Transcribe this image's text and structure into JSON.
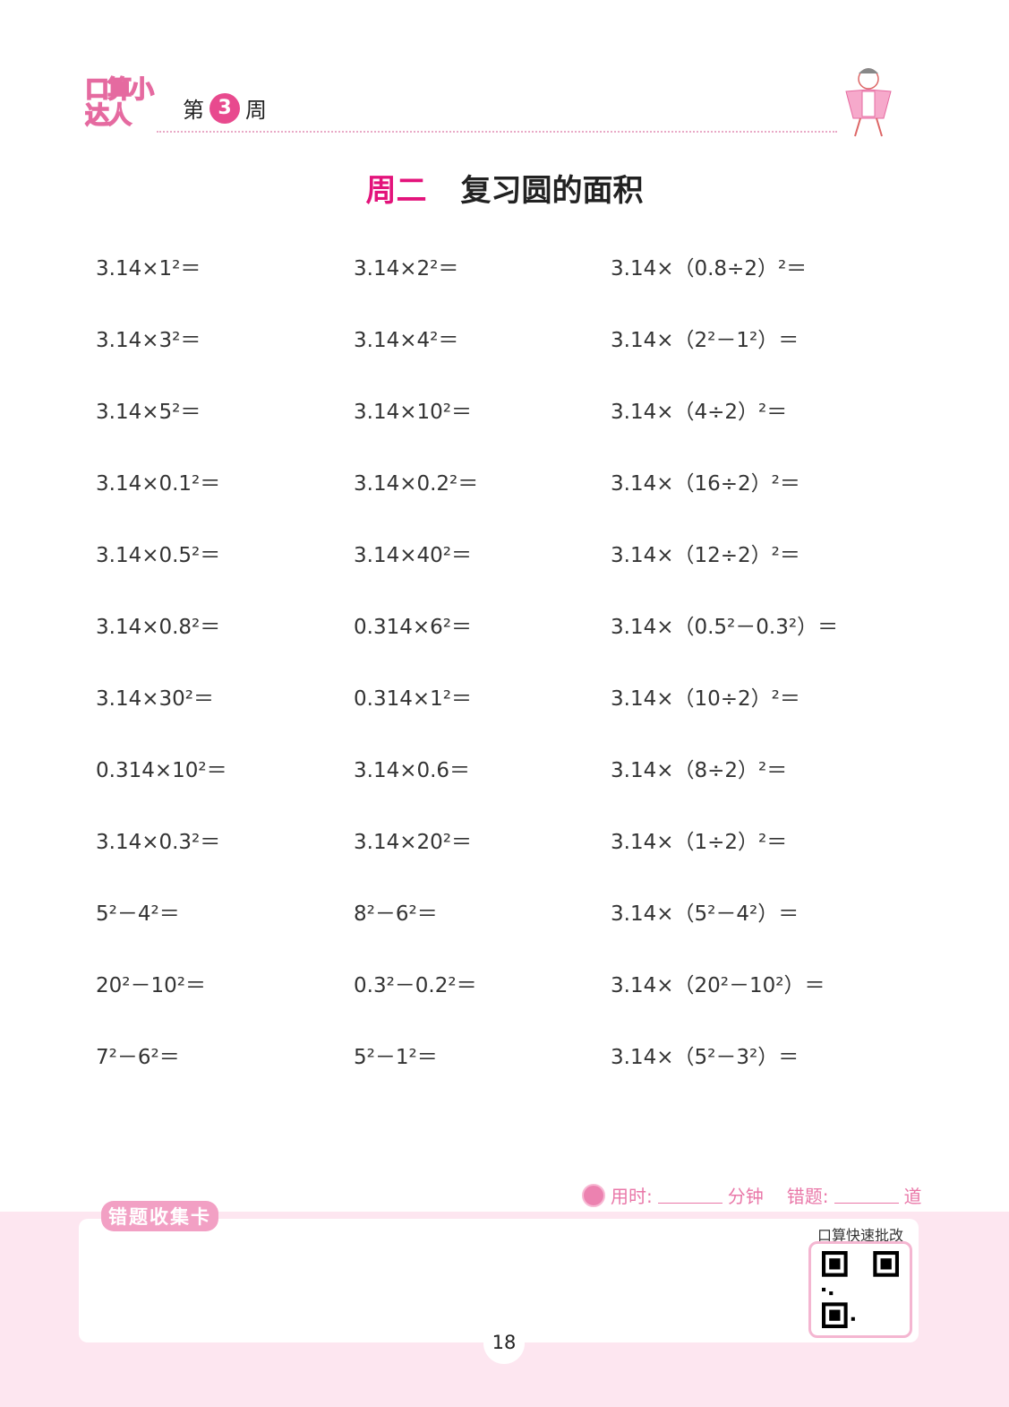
{
  "header": {
    "logo": "口算小达人",
    "week_prefix": "第",
    "week_number": "3",
    "week_suffix": "周"
  },
  "title": {
    "day": "周二",
    "topic": "复习圆的面积"
  },
  "problems": [
    [
      "3.14×1²＝",
      "3.14×2²＝",
      "3.14×（0.8÷2）²＝"
    ],
    [
      "3.14×3²＝",
      "3.14×4²＝",
      "3.14×（2²－1²）＝"
    ],
    [
      "3.14×5²＝",
      "3.14×10²＝",
      "3.14×（4÷2）²＝"
    ],
    [
      "3.14×0.1²＝",
      "3.14×0.2²＝",
      "3.14×（16÷2）²＝"
    ],
    [
      "3.14×0.5²＝",
      "3.14×40²＝",
      "3.14×（12÷2）²＝"
    ],
    [
      "3.14×0.8²＝",
      "0.314×6²＝",
      "3.14×（0.5²－0.3²）＝"
    ],
    [
      "3.14×30²＝",
      "0.314×1²＝",
      "3.14×（10÷2）²＝"
    ],
    [
      "0.314×10²＝",
      "3.14×0.6＝",
      "3.14×（8÷2）²＝"
    ],
    [
      "3.14×0.3²＝",
      "3.14×20²＝",
      "3.14×（1÷2）²＝"
    ],
    [
      "5²－4²＝",
      "8²－6²＝",
      "3.14×（5²－4²）＝"
    ],
    [
      "20²－10²＝",
      "0.3²－0.2²＝",
      "3.14×（20²－10²）＝"
    ],
    [
      "7²－6²＝",
      "5²－1²＝",
      "3.14×（5²－3²）＝"
    ]
  ],
  "footer": {
    "time_label": "用时:",
    "time_unit": "分钟",
    "errors_label": "错题:",
    "errors_unit": "道",
    "collect_card": "错题收集卡",
    "qr_label": "口算快速批改",
    "page_number": "18"
  },
  "colors": {
    "accent": "#e3137b",
    "pink_light": "#fde6f0"
  }
}
